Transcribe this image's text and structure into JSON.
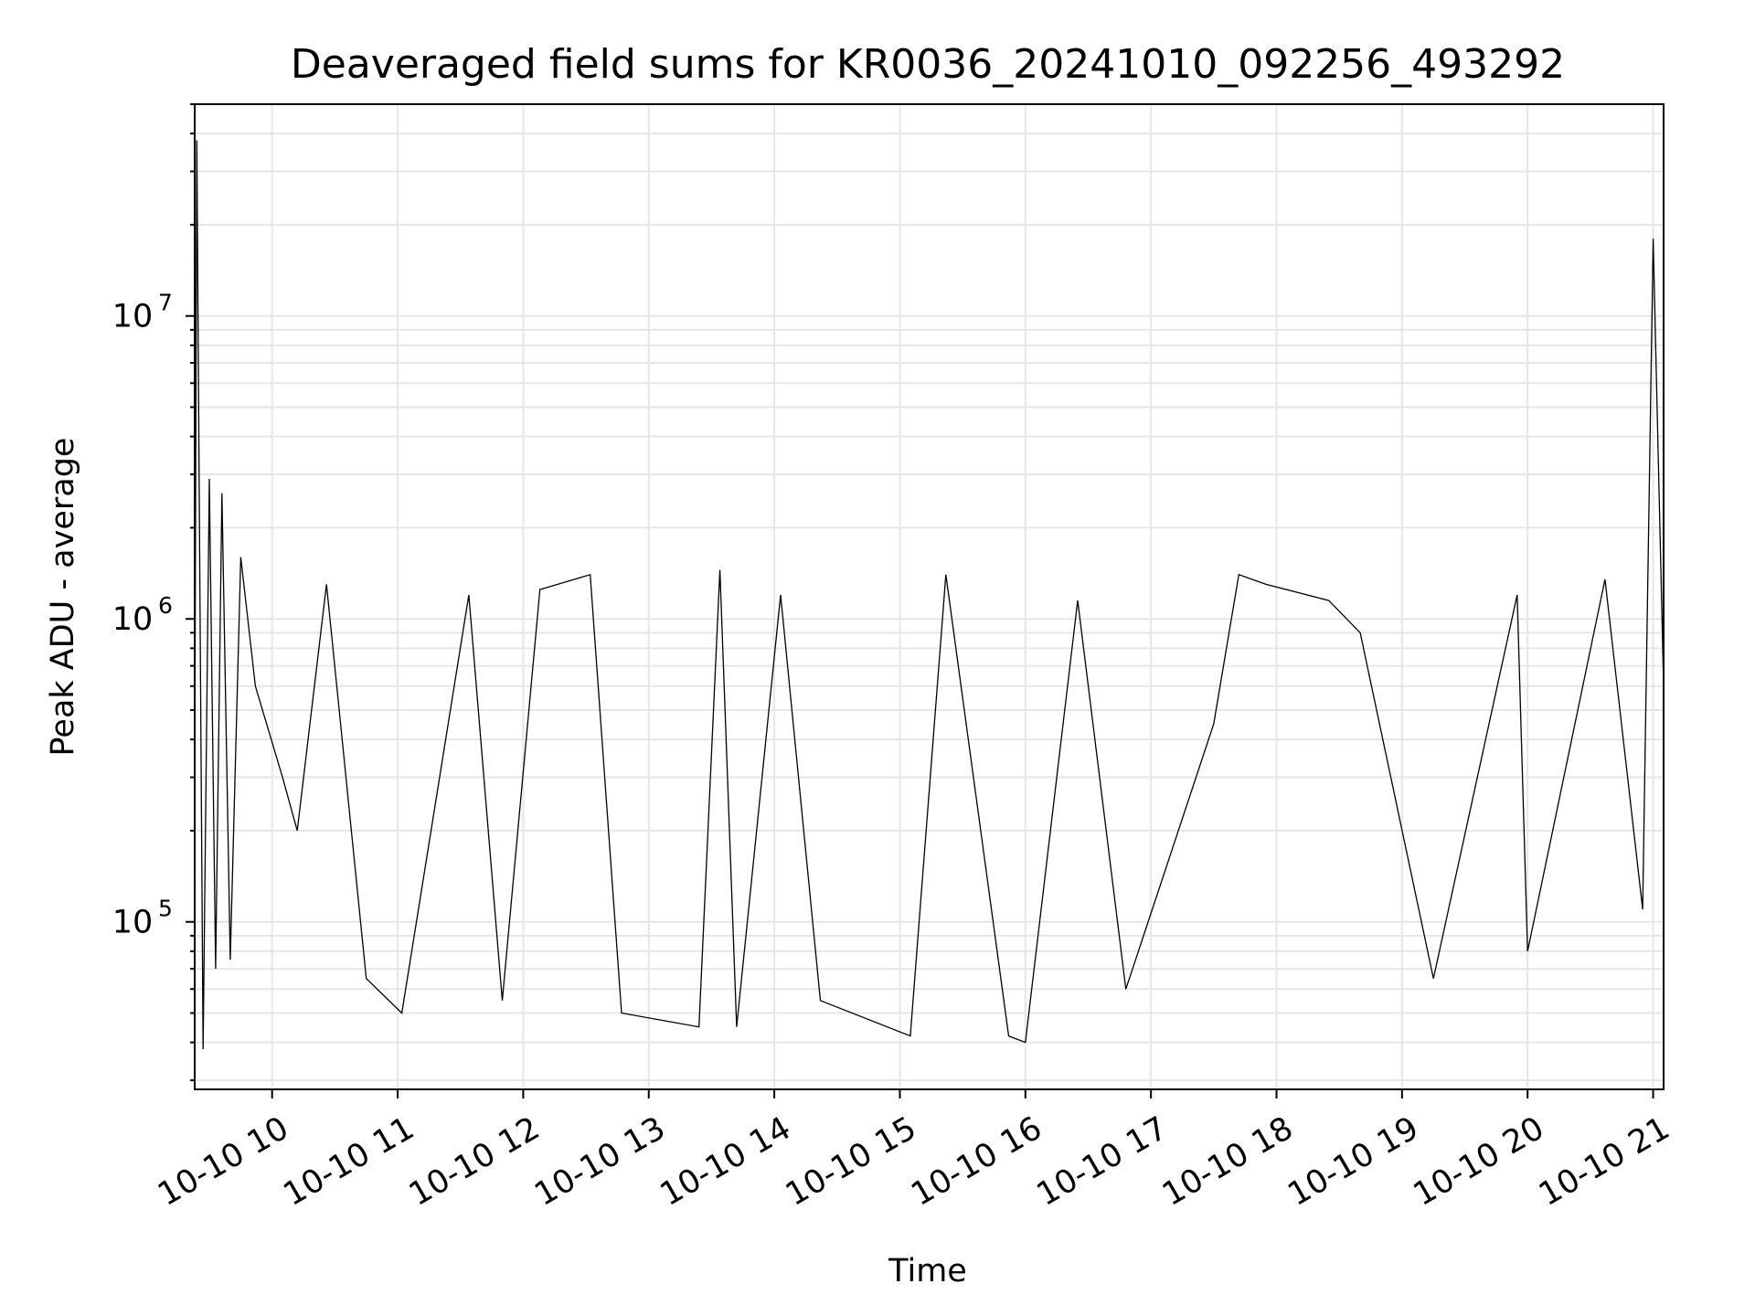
{
  "chart_data": {
    "type": "line",
    "title": "Deaveraged field sums for KR0036_20241010_092256_493292",
    "xlabel": "Time",
    "ylabel": "Peak ADU - average",
    "x_axis": {
      "kind": "datetime",
      "range": [
        "2024-10-10 09:23",
        "2024-10-10 21:05"
      ],
      "tick_values": [
        "2024-10-10 10:00",
        "2024-10-10 11:00",
        "2024-10-10 12:00",
        "2024-10-10 13:00",
        "2024-10-10 14:00",
        "2024-10-10 15:00",
        "2024-10-10 16:00",
        "2024-10-10 17:00",
        "2024-10-10 18:00",
        "2024-10-10 19:00",
        "2024-10-10 20:00",
        "2024-10-10 21:00"
      ],
      "tick_labels": [
        "10-10 10",
        "10-10 11",
        "10-10 12",
        "10-10 13",
        "10-10 14",
        "10-10 15",
        "10-10 16",
        "10-10 17",
        "10-10 18",
        "10-10 19",
        "10-10 20",
        "10-10 21"
      ]
    },
    "y_axis": {
      "scale": "log",
      "range": [
        28000,
        50000000
      ],
      "tick_labels": [
        {
          "value": 100000,
          "base": "10",
          "exp": "5"
        },
        {
          "value": 1000000,
          "base": "10",
          "exp": "6"
        },
        {
          "value": 10000000,
          "base": "10",
          "exp": "7"
        }
      ]
    },
    "grid": true,
    "line_color": "#000000",
    "grid_color": "#e6e6e6",
    "series": [
      {
        "x": [
          "2024-10-10 09:23",
          "2024-10-10 09:24",
          "2024-10-10 09:27",
          "2024-10-10 09:30",
          "2024-10-10 09:33",
          "2024-10-10 09:36",
          "2024-10-10 09:40",
          "2024-10-10 09:45",
          "2024-10-10 09:52",
          "2024-10-10 10:05",
          "2024-10-10 10:12",
          "2024-10-10 10:26",
          "2024-10-10 10:45",
          "2024-10-10 11:02",
          "2024-10-10 11:34",
          "2024-10-10 11:50",
          "2024-10-10 12:08",
          "2024-10-10 12:32",
          "2024-10-10 12:47",
          "2024-10-10 13:24",
          "2024-10-10 13:34",
          "2024-10-10 13:42",
          "2024-10-10 14:03",
          "2024-10-10 14:22",
          "2024-10-10 15:05",
          "2024-10-10 15:22",
          "2024-10-10 15:52",
          "2024-10-10 16:00",
          "2024-10-10 16:25",
          "2024-10-10 16:48",
          "2024-10-10 17:30",
          "2024-10-10 17:42",
          "2024-10-10 17:55",
          "2024-10-10 18:25",
          "2024-10-10 18:40",
          "2024-10-10 19:15",
          "2024-10-10 19:55",
          "2024-10-10 20:00",
          "2024-10-10 20:37",
          "2024-10-10 20:55",
          "2024-10-10 21:00",
          "2024-10-10 21:05"
        ],
        "y": [
          300000,
          38000000,
          38000,
          2900000,
          70000,
          2600000,
          75000,
          1600000,
          600000,
          300000,
          200000,
          1300000,
          65000,
          50000,
          1200000,
          55000,
          1250000,
          1400000,
          50000,
          45000,
          1450000,
          45000,
          1200000,
          55000,
          42000,
          1400000,
          42000,
          40000,
          1150000,
          60000,
          450000,
          1400000,
          1300000,
          1150000,
          900000,
          65000,
          1200000,
          80000,
          1350000,
          110000,
          18000000,
          600000
        ]
      }
    ]
  }
}
